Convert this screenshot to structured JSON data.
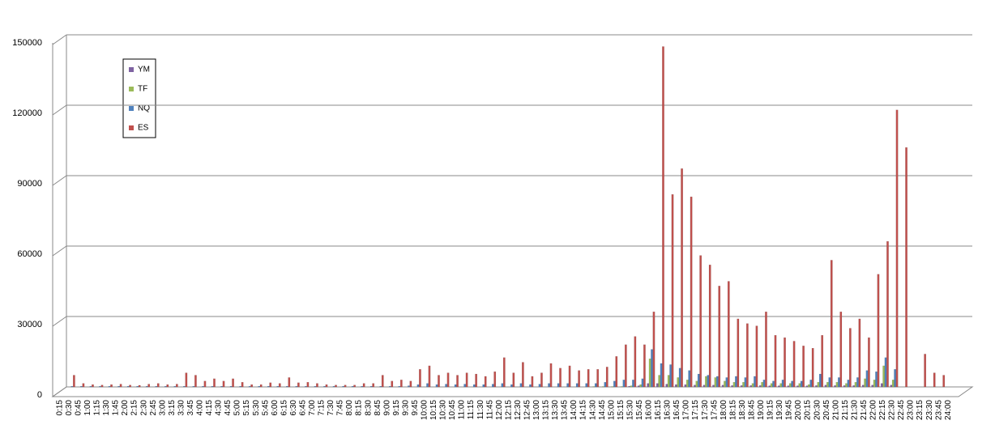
{
  "chart_data": {
    "type": "bar",
    "categories": [
      "0:15",
      "0:30",
      "0:45",
      "1:00",
      "1:15",
      "1:30",
      "1:45",
      "2:00",
      "2:15",
      "2:30",
      "2:45",
      "3:00",
      "3:15",
      "3:30",
      "3:45",
      "4:00",
      "4:15",
      "4:30",
      "4:45",
      "5:00",
      "5:15",
      "5:30",
      "5:45",
      "6:00",
      "6:15",
      "6:30",
      "6:45",
      "7:00",
      "7:15",
      "7:30",
      "7:45",
      "8:00",
      "8:15",
      "8:30",
      "8:45",
      "9:00",
      "9:15",
      "9:30",
      "9:45",
      "10:00",
      "10:15",
      "10:30",
      "10:45",
      "11:00",
      "11:15",
      "11:30",
      "11:45",
      "12:00",
      "12:15",
      "12:30",
      "12:45",
      "13:00",
      "13:15",
      "13:30",
      "13:45",
      "14:00",
      "14:15",
      "14:30",
      "14:45",
      "15:00",
      "15:15",
      "15:30",
      "15:45",
      "16:00",
      "16:15",
      "16:30",
      "16:45",
      "17:00",
      "17:15",
      "17:30",
      "17:45",
      "18:00",
      "18:15",
      "18:30",
      "18:45",
      "19:00",
      "19:15",
      "19:30",
      "19:45",
      "20:00",
      "20:15",
      "20:30",
      "20:45",
      "21:00",
      "21:15",
      "21:30",
      "21:45",
      "22:00",
      "22:15",
      "22:30",
      "22:45",
      "23:00",
      "23:15",
      "23:30",
      "23:45",
      "24:00"
    ],
    "series": [
      {
        "name": "YM",
        "color": "#7f63a2",
        "values": [
          0,
          0,
          0,
          0,
          0,
          0,
          0,
          0,
          0,
          0,
          0,
          0,
          0,
          0,
          0,
          0,
          0,
          0,
          0,
          0,
          0,
          0,
          0,
          0,
          0,
          0,
          0,
          0,
          0,
          0,
          0,
          0,
          0,
          0,
          0,
          0,
          0,
          0,
          0,
          0,
          0,
          0,
          0,
          0,
          0,
          0,
          0,
          0,
          0,
          0,
          0,
          0,
          0,
          0,
          0,
          0,
          0,
          0,
          0,
          0,
          300,
          500,
          1500,
          1500,
          1200,
          1000,
          1000,
          800,
          800,
          800,
          800,
          600,
          600,
          600,
          600,
          500,
          500,
          500,
          500,
          500,
          600,
          800,
          600,
          600,
          600,
          800,
          800,
          1500,
          800,
          0,
          0,
          0,
          0,
          0,
          0,
          0
        ]
      },
      {
        "name": "TF",
        "color": "#9bbb59",
        "values": [
          0,
          0,
          0,
          0,
          0,
          0,
          0,
          0,
          0,
          0,
          0,
          0,
          0,
          0,
          0,
          0,
          0,
          0,
          0,
          0,
          0,
          0,
          0,
          0,
          0,
          0,
          0,
          0,
          0,
          0,
          0,
          0,
          0,
          0,
          0,
          0,
          0,
          0,
          0,
          0,
          0,
          0,
          0,
          0,
          0,
          0,
          0,
          0,
          0,
          0,
          0,
          0,
          0,
          0,
          0,
          0,
          200,
          200,
          200,
          200,
          500,
          1000,
          12000,
          5000,
          5000,
          4000,
          3000,
          2500,
          4500,
          4000,
          2500,
          2000,
          2000,
          1500,
          2000,
          1500,
          1500,
          1500,
          1500,
          1000,
          2000,
          2000,
          2000,
          1500,
          2000,
          3500,
          3000,
          9000,
          3000,
          0,
          0,
          0,
          0,
          0,
          0,
          0
        ]
      },
      {
        "name": "NQ",
        "color": "#4f81bd",
        "values": [
          300,
          300,
          300,
          300,
          300,
          300,
          300,
          300,
          300,
          300,
          300,
          300,
          300,
          300,
          300,
          300,
          300,
          300,
          300,
          300,
          300,
          300,
          300,
          300,
          300,
          300,
          300,
          300,
          300,
          300,
          300,
          300,
          300,
          300,
          300,
          300,
          500,
          1000,
          1500,
          1000,
          1200,
          1000,
          1200,
          1000,
          1000,
          1200,
          1500,
          1000,
          1500,
          1000,
          1200,
          1500,
          1500,
          1500,
          1500,
          1500,
          1500,
          2000,
          2500,
          3000,
          3000,
          3500,
          16000,
          10000,
          9500,
          8000,
          7000,
          5500,
          5000,
          4500,
          4000,
          4500,
          4000,
          4500,
          3000,
          2500,
          3000,
          2500,
          2500,
          3000,
          5500,
          4000,
          4000,
          3000,
          4000,
          7000,
          6500,
          12500,
          7500,
          0,
          0,
          0,
          0,
          0,
          0,
          0
        ]
      },
      {
        "name": "ES",
        "color": "#c0504d",
        "values": [
          5000,
          1500,
          1000,
          800,
          1000,
          1200,
          800,
          700,
          1200,
          1500,
          1000,
          1200,
          6000,
          5000,
          2500,
          3500,
          2500,
          3500,
          2000,
          1000,
          1000,
          1800,
          1500,
          4000,
          1800,
          2000,
          1500,
          1000,
          800,
          800,
          800,
          1500,
          1500,
          5000,
          2500,
          3000,
          2500,
          7500,
          9000,
          5000,
          6000,
          5000,
          6000,
          5500,
          4500,
          6500,
          12500,
          6000,
          10500,
          4500,
          6000,
          10000,
          8000,
          9000,
          7000,
          7500,
          7500,
          8500,
          13000,
          18000,
          21500,
          18000,
          32000,
          145000,
          82000,
          93000,
          81000,
          56000,
          52000,
          43000,
          45000,
          29000,
          27000,
          26000,
          32000,
          22000,
          21000,
          19500,
          17500,
          16500,
          22000,
          54000,
          32000,
          25000,
          29000,
          21000,
          48000,
          62000,
          118000,
          102000,
          0,
          14000,
          6000,
          5000,
          0,
          0
        ]
      }
    ],
    "ylim": [
      0,
      150000
    ],
    "yticks": [
      0,
      30000,
      60000,
      90000,
      120000,
      150000
    ],
    "grid": true,
    "legend": "upper left"
  }
}
